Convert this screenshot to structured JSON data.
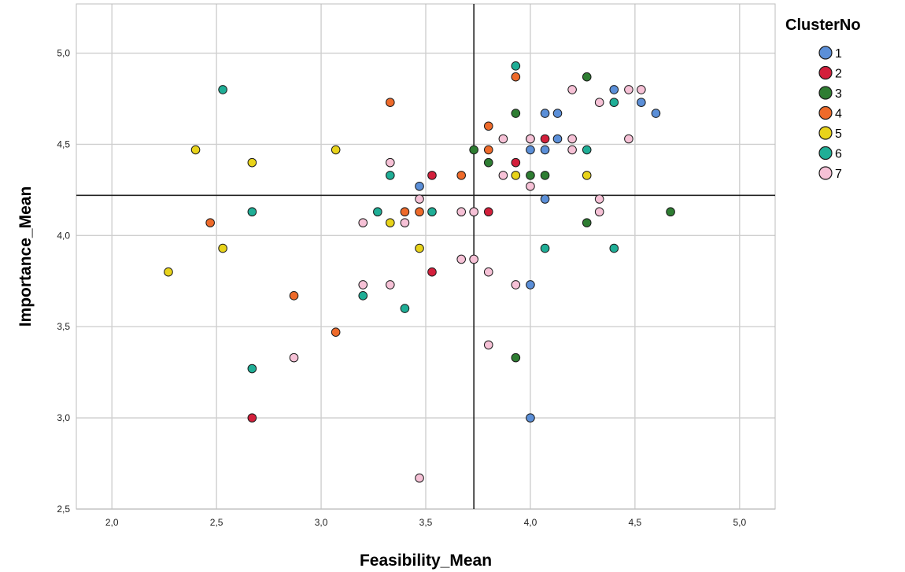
{
  "chart_data": {
    "type": "scatter",
    "xlabel": "Feasibility_Mean",
    "ylabel": "Importance_Mean",
    "xlim": [
      1.83,
      5.17
    ],
    "ylim": [
      2.5,
      5.27
    ],
    "x_ticks": [
      "2,0",
      "2,5",
      "3,0",
      "3,5",
      "4,0",
      "4,5",
      "5,0"
    ],
    "x_tick_values": [
      2.0,
      2.5,
      3.0,
      3.5,
      4.0,
      4.5,
      5.0
    ],
    "y_ticks": [
      "2,5",
      "3,0",
      "3,5",
      "4,0",
      "4,5",
      "5,0"
    ],
    "y_tick_values": [
      2.5,
      3.0,
      3.5,
      4.0,
      4.5,
      5.0
    ],
    "grid": true,
    "reference_lines": {
      "x": 3.73,
      "y": 4.22
    },
    "legend": {
      "title": "ClusterNo",
      "placement": "right",
      "items": [
        {
          "label": "1",
          "color": "#5b8fd8"
        },
        {
          "label": "2",
          "color": "#d31f3b"
        },
        {
          "label": "3",
          "color": "#2e7d32"
        },
        {
          "label": "4",
          "color": "#ee6a2a"
        },
        {
          "label": "5",
          "color": "#e8d31a"
        },
        {
          "label": "6",
          "color": "#1fae96"
        },
        {
          "label": "7",
          "color": "#f6c1d6"
        }
      ]
    },
    "series": [
      {
        "name": "1",
        "color": "#5b8fd8",
        "points": [
          [
            4.4,
            4.8
          ],
          [
            4.53,
            4.73
          ],
          [
            4.6,
            4.67
          ],
          [
            4.07,
            4.67
          ],
          [
            4.13,
            4.67
          ],
          [
            4.13,
            4.53
          ],
          [
            4.0,
            4.47
          ],
          [
            4.07,
            4.47
          ],
          [
            4.0,
            4.53
          ],
          [
            3.47,
            4.27
          ],
          [
            4.07,
            4.2
          ],
          [
            4.0,
            3.73
          ],
          [
            4.0,
            3.0
          ]
        ]
      },
      {
        "name": "2",
        "color": "#d31f3b",
        "points": [
          [
            4.07,
            4.53
          ],
          [
            3.93,
            4.4
          ],
          [
            3.53,
            4.33
          ],
          [
            3.8,
            4.13
          ],
          [
            3.53,
            3.8
          ],
          [
            2.67,
            3.0
          ]
        ]
      },
      {
        "name": "3",
        "color": "#2e7d32",
        "points": [
          [
            4.27,
            4.87
          ],
          [
            3.93,
            4.67
          ],
          [
            3.73,
            4.47
          ],
          [
            3.8,
            4.4
          ],
          [
            4.0,
            4.33
          ],
          [
            4.07,
            4.33
          ],
          [
            4.67,
            4.13
          ],
          [
            4.27,
            4.07
          ],
          [
            3.93,
            3.33
          ]
        ]
      },
      {
        "name": "4",
        "color": "#ee6a2a",
        "points": [
          [
            3.93,
            4.87
          ],
          [
            3.33,
            4.73
          ],
          [
            3.8,
            4.6
          ],
          [
            3.8,
            4.47
          ],
          [
            3.67,
            4.33
          ],
          [
            3.4,
            4.13
          ],
          [
            3.47,
            4.13
          ],
          [
            2.47,
            4.07
          ],
          [
            2.87,
            3.67
          ],
          [
            3.07,
            3.47
          ]
        ]
      },
      {
        "name": "5",
        "color": "#e8d31a",
        "points": [
          [
            2.4,
            4.47
          ],
          [
            3.07,
            4.47
          ],
          [
            2.67,
            4.4
          ],
          [
            3.93,
            4.33
          ],
          [
            4.27,
            4.33
          ],
          [
            3.33,
            4.07
          ],
          [
            2.53,
            3.93
          ],
          [
            3.47,
            3.93
          ],
          [
            2.27,
            3.8
          ]
        ]
      },
      {
        "name": "6",
        "color": "#1fae96",
        "points": [
          [
            3.93,
            4.93
          ],
          [
            2.53,
            4.8
          ],
          [
            4.4,
            4.73
          ],
          [
            4.27,
            4.47
          ],
          [
            3.33,
            4.33
          ],
          [
            2.67,
            4.13
          ],
          [
            3.27,
            4.13
          ],
          [
            3.53,
            4.13
          ],
          [
            4.07,
            3.93
          ],
          [
            4.4,
            3.93
          ],
          [
            3.2,
            3.67
          ],
          [
            3.4,
            3.6
          ],
          [
            2.67,
            3.27
          ]
        ]
      },
      {
        "name": "7",
        "color": "#f6c1d6",
        "points": [
          [
            4.2,
            4.8
          ],
          [
            4.47,
            4.8
          ],
          [
            4.53,
            4.8
          ],
          [
            4.33,
            4.73
          ],
          [
            3.87,
            4.53
          ],
          [
            4.0,
            4.53
          ],
          [
            4.2,
            4.53
          ],
          [
            4.47,
            4.53
          ],
          [
            4.2,
            4.47
          ],
          [
            3.33,
            4.4
          ],
          [
            3.87,
            4.33
          ],
          [
            4.0,
            4.27
          ],
          [
            3.47,
            4.2
          ],
          [
            4.33,
            4.2
          ],
          [
            3.67,
            4.13
          ],
          [
            3.73,
            4.13
          ],
          [
            4.33,
            4.13
          ],
          [
            3.2,
            4.07
          ],
          [
            3.4,
            4.07
          ],
          [
            3.67,
            3.87
          ],
          [
            3.73,
            3.87
          ],
          [
            3.8,
            3.8
          ],
          [
            3.2,
            3.73
          ],
          [
            3.33,
            3.73
          ],
          [
            3.93,
            3.73
          ],
          [
            3.8,
            3.4
          ],
          [
            2.87,
            3.33
          ],
          [
            3.47,
            2.67
          ]
        ]
      }
    ]
  }
}
